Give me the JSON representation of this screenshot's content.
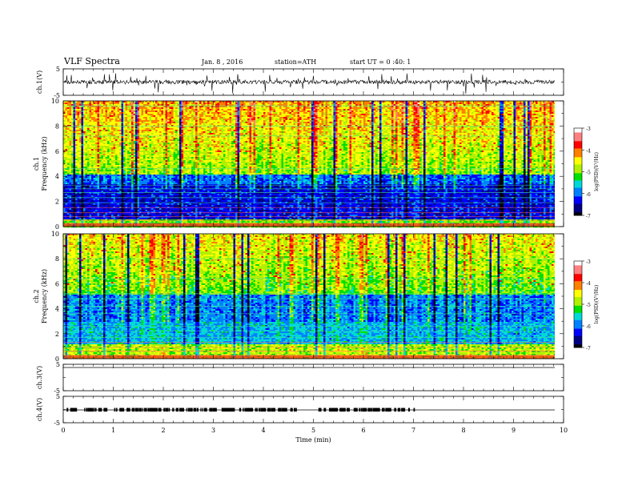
{
  "header": {
    "title": "VLF Spectra",
    "date": "Jan. 8 , 2016",
    "station": "station=ATH",
    "start": "start UT = 0 :40: 1"
  },
  "colors": {
    "spectrum_scale": [
      "#000000",
      "#000080",
      "#0000ff",
      "#0080ff",
      "#00d8d8",
      "#00e000",
      "#b0f000",
      "#ffff00",
      "#ff8000",
      "#ff0000",
      "#ff8080",
      "#ffffff"
    ]
  },
  "chart_data": [
    {
      "type": "line",
      "panel": "ch1-waveform",
      "ylabel": "ch.1(V)",
      "ylim": [
        -5,
        5
      ],
      "yticks": [
        "5",
        "-5"
      ],
      "xlim": [
        0,
        10
      ]
    },
    {
      "type": "heatmap",
      "panel": "ch1-spectrogram",
      "ylabel_top": "ch.1",
      "ylabel": "Frequency (kHz)",
      "ylim": [
        0,
        10
      ],
      "yticks": [
        "0",
        "2",
        "4",
        "6",
        "8",
        "10"
      ],
      "colorbar": {
        "label": "log(PSD)(V²/Hz)",
        "range": [
          -7,
          -3
        ],
        "ticks": [
          "-3",
          "-4",
          "-5",
          "-6",
          "-7"
        ]
      }
    },
    {
      "type": "heatmap",
      "panel": "ch2-spectrogram",
      "ylabel_top": "ch.2",
      "ylabel": "Frequency (kHz)",
      "ylim": [
        0,
        10
      ],
      "yticks": [
        "0",
        "2",
        "4",
        "6",
        "8",
        "10"
      ],
      "colorbar": {
        "label": "log(PSD)(V²/Hz)",
        "range": [
          -7,
          -3
        ],
        "ticks": [
          "-3",
          "-4",
          "-5",
          "-6",
          "-7"
        ]
      }
    },
    {
      "type": "line",
      "panel": "ch3-waveform",
      "ylabel": "ch.3(V)",
      "ylim": [
        -5,
        5
      ],
      "yticks": [
        "5",
        "-5"
      ]
    },
    {
      "type": "line",
      "panel": "ch4-waveform",
      "ylabel": "ch.4(V)",
      "ylim": [
        -5,
        5
      ],
      "yticks": [
        "5",
        "-5"
      ],
      "xlabel": "Time (min)",
      "xlim": [
        0,
        10
      ],
      "xticks": [
        "0",
        "1",
        "2",
        "3",
        "4",
        "5",
        "6",
        "7",
        "8",
        "9",
        "10"
      ]
    }
  ]
}
